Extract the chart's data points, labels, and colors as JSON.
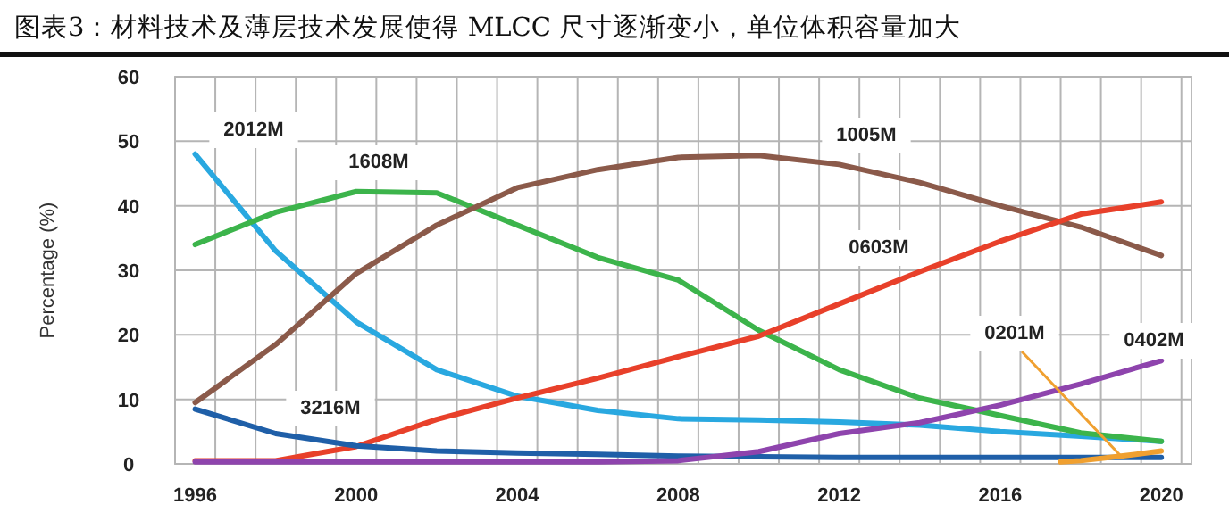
{
  "chart_data": {
    "type": "line",
    "title": "图表3：材料技术及薄层技术发展使得 MLCC 尺寸逐渐变小，单位体积容量加大",
    "ylabel": "Percentage (%)",
    "x": [
      1996,
      1998,
      2000,
      2002,
      2004,
      2006,
      2008,
      2010,
      2012,
      2014,
      2016,
      2018,
      2020
    ],
    "xlim": [
      1995.5,
      2020.75
    ],
    "xticks": [
      1996,
      2000,
      2004,
      2008,
      2012,
      2016,
      2020
    ],
    "ylim": [
      0,
      60
    ],
    "yticks": [
      0,
      10,
      20,
      30,
      40,
      50,
      60
    ],
    "grid": true,
    "marker": "none",
    "line_style": "solid",
    "series": [
      {
        "name": "2012M",
        "color": "#29a8e0",
        "values": [
          48,
          33,
          22,
          14.6,
          10.5,
          8.3,
          7,
          6.8,
          6.5,
          6,
          5,
          4.3,
          3.5
        ]
      },
      {
        "name": "1608M",
        "color": "#3cb44b",
        "values": [
          34,
          39,
          42.2,
          42,
          37,
          32,
          28.5,
          20.7,
          14.6,
          10.2,
          7.5,
          4.8,
          3.5
        ]
      },
      {
        "name": "1005M",
        "color": "#8b5a4a",
        "values": [
          9.5,
          18.5,
          29.5,
          37,
          42.8,
          45.6,
          47.5,
          47.8,
          46.4,
          43.6,
          40,
          36.7,
          32.3
        ]
      },
      {
        "name": "0603M",
        "color": "#e8402a",
        "values": [
          0.5,
          0.5,
          2.7,
          6.9,
          10.2,
          13.3,
          16.6,
          19.8,
          24.8,
          29.8,
          34.5,
          38.7,
          40.6
        ]
      },
      {
        "name": "3216M",
        "color": "#1f5fa8",
        "values": [
          8.5,
          4.7,
          2.8,
          2,
          1.7,
          1.5,
          1.2,
          1.1,
          1,
          1,
          1,
          1,
          1
        ]
      },
      {
        "name": "0201M",
        "color": "#f0a030",
        "x": [
          2017.5,
          2018,
          2019,
          2020
        ],
        "values": [
          0.3,
          0.5,
          1.2,
          2
        ]
      },
      {
        "name": "0402M",
        "color": "#8e44ad",
        "values": [
          0.3,
          0.3,
          0.3,
          0.3,
          0.3,
          0.3,
          0.5,
          1.9,
          4.7,
          6.4,
          9.1,
          12.4,
          16
        ]
      }
    ]
  }
}
